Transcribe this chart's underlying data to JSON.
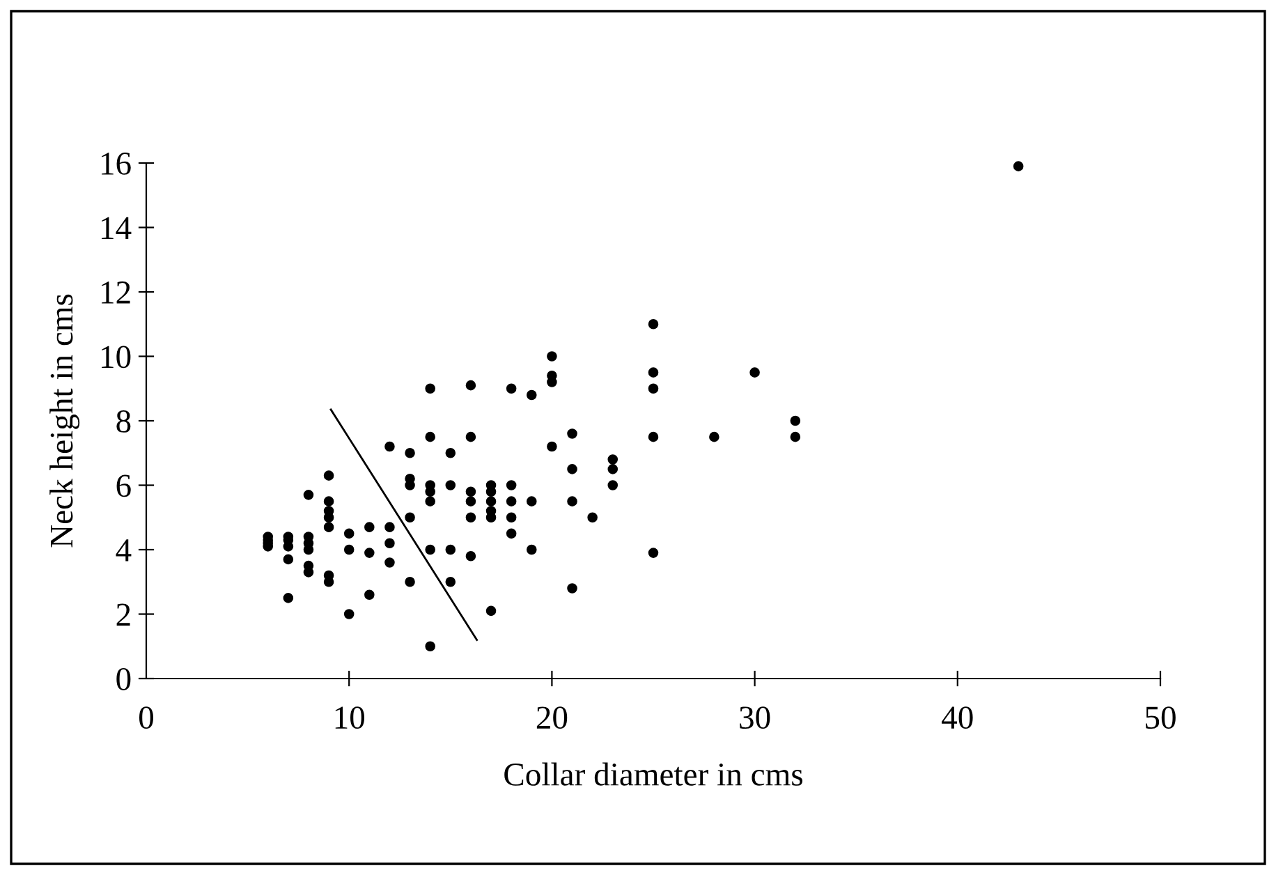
{
  "chart_data": {
    "type": "scatter",
    "xlabel": "Collar diameter in cms",
    "ylabel": "Neck height in cms",
    "xlim": [
      0,
      50
    ],
    "xticks": [
      0,
      10,
      20,
      30,
      40,
      50
    ],
    "ylim": [
      0,
      16
    ],
    "yticks": [
      0,
      2,
      4,
      6,
      8,
      10,
      12,
      14,
      16
    ],
    "grid": false,
    "legend": false,
    "series": [
      {
        "color": "#000000",
        "marker": "circle",
        "x": [
          6,
          6,
          6,
          6,
          7,
          7,
          7,
          7,
          7,
          8,
          8,
          8,
          8,
          8,
          8,
          9,
          9,
          9,
          9,
          9,
          9,
          9,
          10,
          10,
          10,
          11,
          11,
          11,
          12,
          12,
          12,
          12,
          13,
          13,
          13,
          13,
          13,
          14,
          14,
          14,
          14,
          14,
          14,
          14,
          15,
          15,
          15,
          15,
          16,
          16,
          16,
          16,
          16,
          16,
          17,
          17,
          17,
          17,
          17,
          17,
          18,
          18,
          18,
          18,
          18,
          19,
          19,
          19,
          20,
          20,
          20,
          20,
          21,
          21,
          21,
          21,
          22,
          23,
          23,
          23,
          25,
          25,
          25,
          25,
          25,
          28,
          30,
          32,
          32,
          43
        ],
        "values": [
          4.4,
          4.3,
          4.2,
          4.1,
          4.4,
          4.3,
          4.1,
          3.7,
          2.5,
          5.7,
          4.4,
          4.2,
          4.0,
          3.5,
          3.3,
          6.3,
          5.5,
          5.2,
          5.0,
          4.7,
          3.2,
          3.0,
          4.5,
          4.0,
          2.0,
          4.7,
          3.9,
          2.6,
          7.2,
          4.7,
          4.2,
          3.6,
          7.0,
          6.2,
          6.0,
          5.0,
          3.0,
          9.0,
          7.5,
          6.0,
          5.8,
          5.5,
          4.0,
          1.0,
          7.0,
          6.0,
          4.0,
          3.0,
          9.1,
          7.5,
          5.8,
          5.5,
          5.0,
          3.8,
          6.0,
          5.8,
          5.5,
          5.2,
          5.0,
          2.1,
          9.0,
          6.0,
          5.5,
          5.0,
          4.5,
          8.8,
          5.5,
          4.0,
          10.0,
          9.4,
          9.2,
          7.2,
          7.6,
          6.5,
          5.5,
          2.8,
          5.0,
          6.8,
          6.5,
          6.0,
          11.0,
          9.5,
          9.0,
          7.5,
          3.9,
          7.5,
          9.5,
          8.0,
          7.5,
          15.9
        ]
      },
      {
        "type": "line",
        "color": "#000000",
        "line_style": "solid",
        "x": [
          9.1,
          16.3
        ],
        "values": [
          8.35,
          1.2
        ]
      }
    ]
  }
}
